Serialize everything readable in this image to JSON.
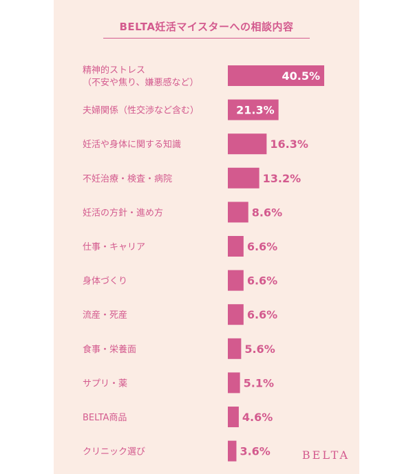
{
  "chart_data": {
    "type": "bar",
    "orientation": "horizontal",
    "title": "BELTA妊活マイスターへの相談内容",
    "categories": [
      [
        "精神的ストレス",
        "（不安や焦り、嫌悪感など）"
      ],
      [
        "夫婦関係（性交渉など含む）"
      ],
      [
        "妊活や身体に関する知識"
      ],
      [
        "不妊治療・検査・病院"
      ],
      [
        "妊活の方針・進め方"
      ],
      [
        "仕事・キャリア"
      ],
      [
        "身体づくり"
      ],
      [
        "流産・死産"
      ],
      [
        "食事・栄養面"
      ],
      [
        "サプリ・薬"
      ],
      [
        "BELTA商品"
      ],
      [
        "クリニック選び"
      ]
    ],
    "values": [
      40.5,
      21.3,
      16.3,
      13.2,
      8.6,
      6.6,
      6.6,
      6.6,
      5.6,
      5.1,
      4.6,
      3.6
    ],
    "value_labels": [
      "40.5%",
      "21.3%",
      "16.3%",
      "13.2%",
      "8.6%",
      "6.6%",
      "6.6%",
      "6.6%",
      "5.6%",
      "5.1%",
      "4.6%",
      "3.6%"
    ],
    "labels_inside": [
      true,
      true,
      false,
      false,
      false,
      false,
      false,
      false,
      false,
      false,
      false,
      false
    ],
    "bar_color": "#d35a8e",
    "label_color": "#d35a8e"
  },
  "brand": "BELTA",
  "colors": {
    "card_background": "#fbece4",
    "accent": "#d35a8e"
  }
}
